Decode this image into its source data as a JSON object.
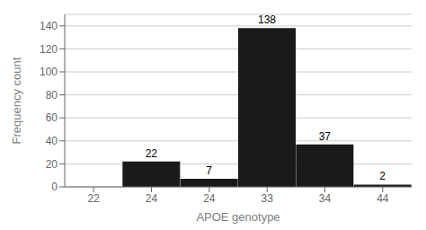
{
  "chart_data": {
    "type": "bar",
    "categories": [
      "22",
      "24",
      "24",
      "33",
      "34",
      "44"
    ],
    "values": [
      0,
      22,
      7,
      138,
      37,
      2
    ],
    "color": "#1a1a1a",
    "xlabel": "APOE genotype",
    "ylabel": "Frequency count",
    "ylim": [
      0,
      150
    ],
    "yticks": [
      0,
      20,
      40,
      60,
      80,
      100,
      120,
      140
    ],
    "grid": true,
    "data_labels": true
  }
}
